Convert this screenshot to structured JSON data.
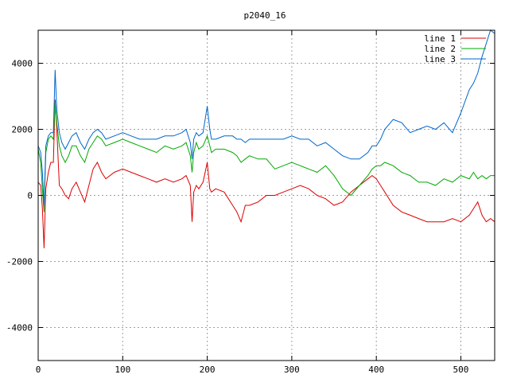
{
  "chart_data": {
    "type": "line",
    "title": "p2040_16",
    "xlabel": "",
    "ylabel": "",
    "xlim": [
      0,
      540
    ],
    "ylim": [
      -5000,
      5000
    ],
    "xticks": [
      0,
      100,
      200,
      300,
      400,
      500
    ],
    "yticks": [
      -4000,
      -2000,
      0,
      2000,
      4000
    ],
    "xtick_labels": [
      "0",
      "100",
      "200",
      "300",
      "400",
      "500"
    ],
    "ytick_labels": [
      "-4000",
      "-2000",
      "0",
      "2000",
      "4000"
    ],
    "grid": true,
    "legend_position": "top-right",
    "series": [
      {
        "name": "line 1",
        "color": "#dd0000",
        "x": [
          0,
          3,
          5,
          7,
          9,
          12,
          15,
          18,
          20,
          22,
          25,
          28,
          32,
          36,
          40,
          45,
          50,
          55,
          60,
          65,
          70,
          75,
          80,
          90,
          100,
          110,
          120,
          130,
          140,
          150,
          160,
          170,
          175,
          180,
          182,
          184,
          187,
          190,
          195,
          200,
          203,
          205,
          210,
          220,
          230,
          235,
          240,
          245,
          250,
          260,
          270,
          280,
          290,
          300,
          310,
          320,
          330,
          340,
          350,
          360,
          370,
          380,
          390,
          395,
          400,
          405,
          410,
          420,
          430,
          440,
          450,
          460,
          470,
          480,
          490,
          500,
          510,
          515,
          520,
          525,
          530,
          535,
          540
        ],
        "y": [
          400,
          300,
          -400,
          -1600,
          200,
          700,
          1000,
          1000,
          2900,
          2000,
          300,
          200,
          0,
          -100,
          200,
          400,
          100,
          -200,
          300,
          800,
          1000,
          700,
          500,
          700,
          800,
          700,
          600,
          500,
          400,
          500,
          400,
          500,
          600,
          300,
          -800,
          100,
          300,
          200,
          400,
          1000,
          200,
          100,
          200,
          100,
          -300,
          -500,
          -800,
          -300,
          -300,
          -200,
          0,
          0,
          100,
          200,
          300,
          200,
          0,
          -100,
          -300,
          -200,
          100,
          300,
          500,
          600,
          500,
          300,
          100,
          -300,
          -500,
          -600,
          -700,
          -800,
          -800,
          -800,
          -700,
          -800,
          -600,
          -400,
          -200,
          -600,
          -800,
          -700,
          -800
        ]
      },
      {
        "name": "line 2",
        "color": "#00aa00",
        "x": [
          0,
          3,
          5,
          7,
          9,
          12,
          15,
          18,
          20,
          22,
          25,
          28,
          32,
          36,
          40,
          45,
          50,
          55,
          60,
          65,
          70,
          75,
          80,
          90,
          100,
          110,
          120,
          130,
          140,
          150,
          160,
          170,
          175,
          180,
          182,
          184,
          187,
          190,
          195,
          200,
          203,
          205,
          210,
          220,
          230,
          235,
          240,
          245,
          250,
          260,
          270,
          280,
          290,
          300,
          310,
          320,
          330,
          340,
          350,
          360,
          370,
          380,
          390,
          395,
          400,
          405,
          410,
          420,
          430,
          440,
          450,
          460,
          470,
          480,
          490,
          500,
          510,
          515,
          520,
          525,
          530,
          535,
          540
        ],
        "y": [
          1400,
          1000,
          200,
          -500,
          1300,
          1700,
          1800,
          1700,
          2800,
          2200,
          1500,
          1200,
          1000,
          1200,
          1500,
          1500,
          1200,
          1000,
          1400,
          1600,
          1800,
          1700,
          1500,
          1600,
          1700,
          1600,
          1500,
          1400,
          1300,
          1500,
          1400,
          1500,
          1600,
          1200,
          700,
          1300,
          1600,
          1400,
          1500,
          1800,
          1500,
          1300,
          1400,
          1400,
          1300,
          1200,
          1000,
          1100,
          1200,
          1100,
          1100,
          800,
          900,
          1000,
          900,
          800,
          700,
          900,
          600,
          200,
          0,
          300,
          600,
          800,
          900,
          900,
          1000,
          900,
          700,
          600,
          400,
          400,
          300,
          500,
          400,
          600,
          500,
          700,
          500,
          600,
          500,
          600,
          600
        ]
      },
      {
        "name": "line 3",
        "color": "#0066cc",
        "x": [
          0,
          3,
          5,
          7,
          9,
          12,
          15,
          18,
          20,
          22,
          25,
          28,
          32,
          36,
          40,
          45,
          50,
          55,
          60,
          65,
          70,
          75,
          80,
          90,
          100,
          110,
          120,
          130,
          140,
          150,
          160,
          170,
          175,
          180,
          182,
          184,
          187,
          190,
          195,
          200,
          203,
          205,
          210,
          220,
          230,
          235,
          240,
          245,
          250,
          260,
          270,
          280,
          290,
          300,
          310,
          320,
          330,
          340,
          350,
          360,
          370,
          380,
          390,
          395,
          400,
          405,
          410,
          420,
          430,
          440,
          450,
          460,
          470,
          480,
          490,
          500,
          510,
          515,
          520,
          525,
          530,
          535,
          540
        ],
        "y": [
          1500,
          1300,
          700,
          -300,
          1500,
          1800,
          1900,
          1900,
          3800,
          2600,
          1900,
          1600,
          1400,
          1600,
          1800,
          1900,
          1600,
          1400,
          1700,
          1900,
          2000,
          1900,
          1700,
          1800,
          1900,
          1800,
          1700,
          1700,
          1700,
          1800,
          1800,
          1900,
          2000,
          1600,
          1100,
          1700,
          1900,
          1800,
          1900,
          2700,
          2000,
          1700,
          1700,
          1800,
          1800,
          1700,
          1700,
          1600,
          1700,
          1700,
          1700,
          1700,
          1700,
          1800,
          1700,
          1700,
          1500,
          1600,
          1400,
          1200,
          1100,
          1100,
          1300,
          1500,
          1500,
          1700,
          2000,
          2300,
          2200,
          1900,
          2000,
          2100,
          2000,
          2200,
          1900,
          2500,
          3200,
          3400,
          3700,
          4200,
          4600,
          5000,
          4900
        ]
      }
    ]
  }
}
